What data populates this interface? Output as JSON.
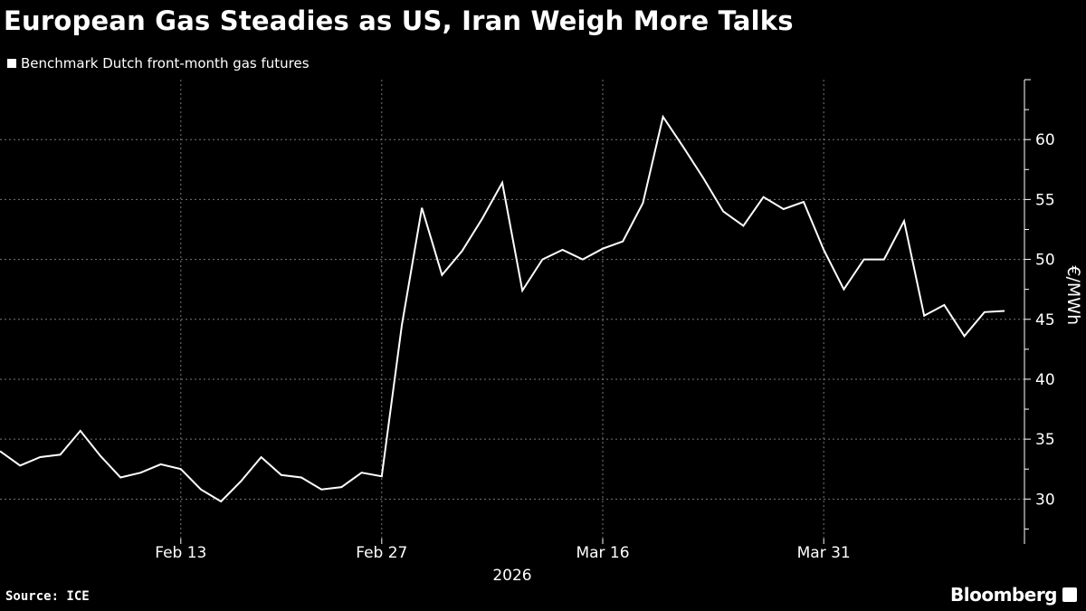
{
  "header": {
    "title": "European Gas Steadies as US, Iran Weigh More Talks"
  },
  "footer": {
    "source": "Source: ICE",
    "brand": "Bloomberg"
  },
  "chart_data": {
    "type": "line",
    "title": "European Gas Steadies as US, Iran Weigh More Talks",
    "xlabel": "2026",
    "ylabel": "€/MWh",
    "ylim": [
      26.7,
      65
    ],
    "yticks": [
      30,
      35,
      40,
      45,
      50,
      55,
      60
    ],
    "ytick_labels": [
      "30",
      "35",
      "40",
      "45",
      "50",
      "55",
      "60"
    ],
    "xticks": [
      {
        "index": 9,
        "label": "Feb 13"
      },
      {
        "index": 19,
        "label": "Feb 27"
      },
      {
        "index": 30,
        "label": "Mar 16"
      },
      {
        "index": 41,
        "label": "Mar 31"
      }
    ],
    "grid": true,
    "legend_position": "top-left",
    "series": [
      {
        "name": "Benchmark Dutch front-month gas futures",
        "color": "#ffffff",
        "values": [
          34.0,
          32.8,
          33.5,
          33.7,
          35.7,
          33.6,
          31.8,
          32.2,
          32.9,
          32.5,
          30.8,
          29.8,
          31.5,
          33.5,
          32.0,
          31.8,
          30.8,
          31.0,
          32.2,
          31.9,
          44.5,
          54.3,
          48.7,
          50.7,
          53.4,
          56.4,
          47.4,
          50.0,
          50.8,
          50.0,
          50.9,
          51.5,
          54.7,
          61.9,
          59.4,
          56.8,
          54.0,
          52.8,
          55.2,
          54.2,
          54.8,
          50.8,
          47.5,
          50.0,
          50.0,
          53.2,
          45.3,
          46.2,
          43.6,
          45.6,
          45.7
        ]
      }
    ]
  }
}
